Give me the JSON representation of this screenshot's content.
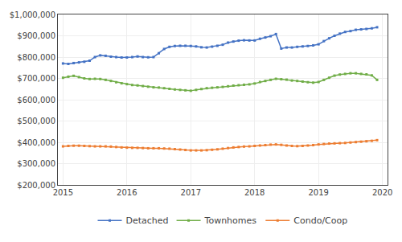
{
  "chart_data": {
    "type": "line",
    "x": [
      2015,
      2015.083333,
      2015.166667,
      2015.25,
      2015.333333,
      2015.416667,
      2015.5,
      2015.583333,
      2015.666667,
      2015.75,
      2015.833333,
      2015.916667,
      2016,
      2016.083333,
      2016.166667,
      2016.25,
      2016.333333,
      2016.416667,
      2016.5,
      2016.583333,
      2016.666667,
      2016.75,
      2016.833333,
      2016.916667,
      2017,
      2017.083333,
      2017.166667,
      2017.25,
      2017.333333,
      2017.416667,
      2017.5,
      2017.583333,
      2017.666667,
      2017.75,
      2017.833333,
      2017.916667,
      2018,
      2018.083333,
      2018.166667,
      2018.25,
      2018.333333,
      2018.416667,
      2018.5,
      2018.583333,
      2018.666667,
      2018.75,
      2018.833333,
      2018.916667,
      2019,
      2019.083333,
      2019.166667,
      2019.25,
      2019.333333,
      2019.416667,
      2019.5,
      2019.583333,
      2019.666667,
      2019.75,
      2019.833333,
      2019.916667
    ],
    "series": [
      {
        "name": "Detached",
        "color": "#4472C4",
        "values": [
          770000,
          768000,
          772000,
          775000,
          778000,
          783000,
          800000,
          808000,
          806000,
          802000,
          800000,
          798000,
          798000,
          800000,
          803000,
          800000,
          799000,
          800000,
          818000,
          838000,
          848000,
          852000,
          853000,
          853000,
          852000,
          850000,
          846000,
          845000,
          849000,
          853000,
          858000,
          868000,
          873000,
          877000,
          879000,
          878000,
          878000,
          886000,
          892000,
          898000,
          908000,
          840000,
          845000,
          845000,
          848000,
          850000,
          852000,
          855000,
          860000,
          875000,
          888000,
          900000,
          910000,
          918000,
          922000,
          928000,
          930000,
          932000,
          935000,
          940000
        ]
      },
      {
        "name": "Townhomes",
        "color": "#70AD47",
        "values": [
          703000,
          708000,
          712000,
          706000,
          700000,
          697000,
          698000,
          697000,
          693000,
          688000,
          682000,
          677000,
          673000,
          669000,
          667000,
          664000,
          661000,
          658000,
          657000,
          654000,
          651000,
          648000,
          646000,
          644000,
          642000,
          646000,
          650000,
          654000,
          656000,
          658000,
          660000,
          663000,
          666000,
          668000,
          670000,
          672000,
          676000,
          683000,
          688000,
          693000,
          698000,
          696000,
          694000,
          690000,
          688000,
          685000,
          682000,
          680000,
          683000,
          693000,
          703000,
          713000,
          718000,
          721000,
          724000,
          724000,
          721000,
          719000,
          714000,
          693000
        ]
      },
      {
        "name": "Condo/Coop",
        "color": "#ED7D31",
        "values": [
          381000,
          383000,
          384000,
          384000,
          383000,
          382000,
          381000,
          381000,
          381000,
          380000,
          378000,
          376000,
          375000,
          374000,
          374000,
          373000,
          372000,
          372000,
          372000,
          371000,
          370000,
          368000,
          366000,
          364000,
          362000,
          362000,
          362000,
          363000,
          365000,
          367000,
          370000,
          373000,
          376000,
          378000,
          380000,
          381000,
          383000,
          385000,
          387000,
          389000,
          390000,
          388000,
          385000,
          383000,
          382000,
          383000,
          385000,
          387000,
          390000,
          392000,
          394000,
          395000,
          396000,
          397000,
          399000,
          401000,
          403000,
          405000,
          407000,
          410000
        ]
      }
    ],
    "xlim": [
      2014.92,
      2020.08
    ],
    "xticks": [
      2015,
      2016,
      2017,
      2018,
      2019,
      2020
    ],
    "ylim": [
      200000,
      1000000
    ],
    "yticks": [
      {
        "value": 200000,
        "label": "$200,000"
      },
      {
        "value": 300000,
        "label": "$300,000"
      },
      {
        "value": 400000,
        "label": "$400,000"
      },
      {
        "value": 500000,
        "label": "$500,000"
      },
      {
        "value": 600000,
        "label": "$600,000"
      },
      {
        "value": 700000,
        "label": "$700,000"
      },
      {
        "value": 800000,
        "label": "$800,000"
      },
      {
        "value": 900000,
        "label": "$900,000"
      },
      {
        "value": 1000000,
        "label": "$1,000,000"
      }
    ],
    "grid": true,
    "legend": "bottom",
    "marker": "square"
  }
}
